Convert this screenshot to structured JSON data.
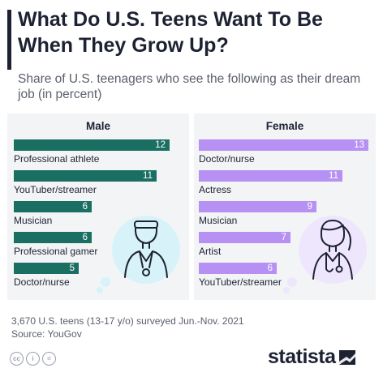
{
  "header": {
    "title": "What Do U.S. Teens Want To Be When They Grow Up?",
    "subtitle": "Share of U.S. teenagers who see the following as their dream job (in percent)"
  },
  "chart_data": [
    {
      "type": "bar",
      "orientation": "horizontal",
      "title": "Male",
      "categories": [
        "Professional athlete",
        "YouTuber/streamer",
        "Musician",
        "Professional gamer",
        "Doctor/nurse"
      ],
      "values": [
        12,
        11,
        6,
        6,
        5
      ],
      "color": "#1b6f62"
    },
    {
      "type": "bar",
      "orientation": "horizontal",
      "title": "Female",
      "categories": [
        "Doctor/nurse",
        "Actress",
        "Musician",
        "Artist",
        "YouTuber/streamer"
      ],
      "values": [
        13,
        11,
        9,
        7,
        6
      ],
      "color": "#b690f2"
    }
  ],
  "footer": {
    "note": "3,670 U.S. teens (13-17 y/o) surveyed Jun.-Nov. 2021",
    "source": "Source: YouGov",
    "license_icons": [
      "cc",
      "i",
      "="
    ],
    "brand": "statista"
  },
  "colors": {
    "male_bar": "#1b6f62",
    "female_bar": "#b690f2",
    "male_bubble": "#d7f3f9",
    "female_bubble": "#eee6fd",
    "text": "#1d2233"
  }
}
